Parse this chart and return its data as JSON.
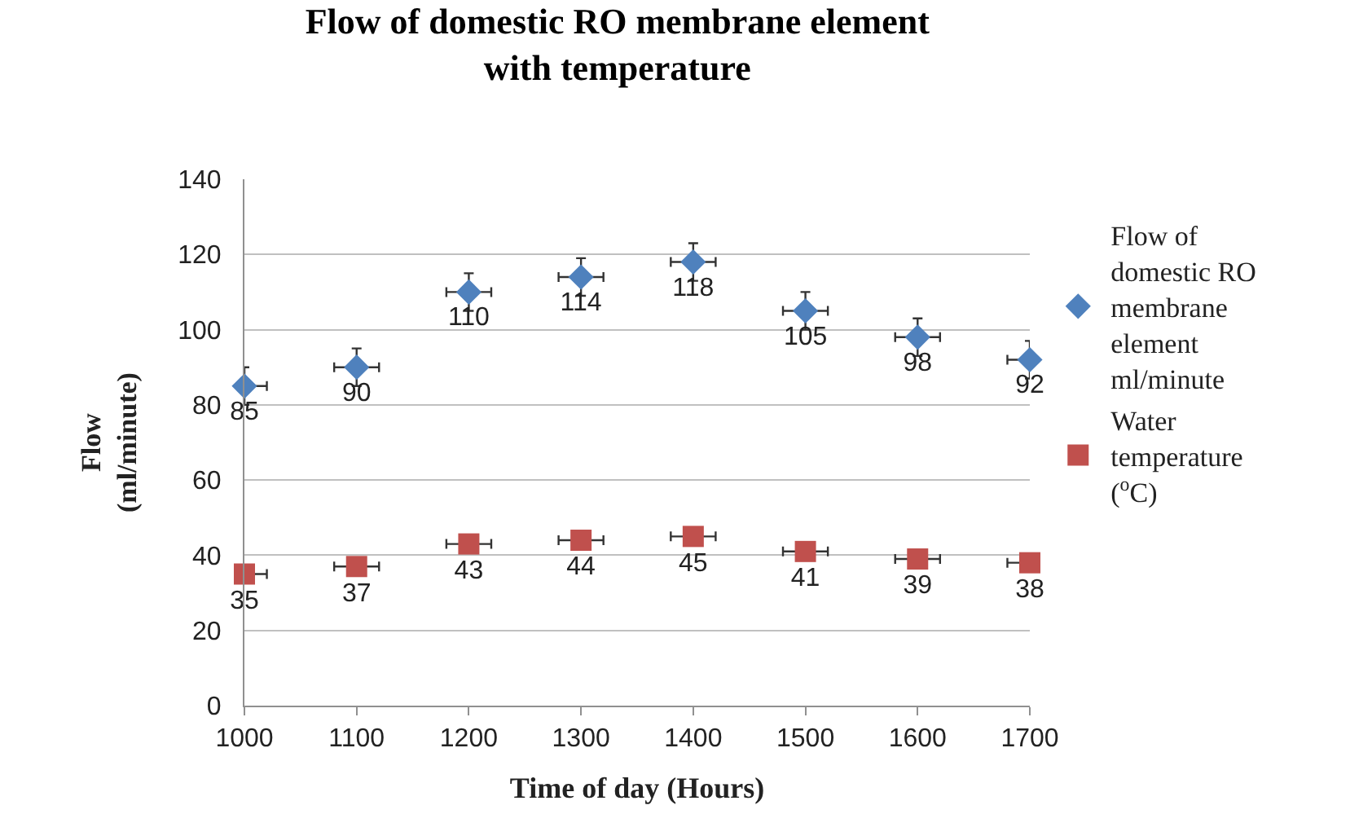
{
  "chart_data": {
    "type": "scatter",
    "title": "Flow of domestic RO membrane element with temperature",
    "xlabel": "Time of day (Hours)",
    "ylabel": "Flow (ml/minute)",
    "x": [
      1000,
      1100,
      1200,
      1300,
      1400,
      1500,
      1600,
      1700
    ],
    "series": [
      {
        "name": "Flow of domestic RO membrane element ml/minute",
        "color": "#4f81bd",
        "marker": "diamond",
        "values": [
          85,
          90,
          110,
          114,
          118,
          105,
          98,
          92
        ],
        "errors": [
          5,
          5,
          5,
          5,
          5,
          5,
          5,
          5
        ],
        "xerrors": [
          20,
          20,
          20,
          20,
          20,
          20,
          20,
          20
        ]
      },
      {
        "name": "Water temperature ($^{o}$C)",
        "color": "#c0504d",
        "marker": "square",
        "values": [
          35,
          37,
          43,
          44,
          45,
          41,
          39,
          38
        ],
        "xerrors": [
          20,
          20,
          20,
          20,
          20,
          20,
          20,
          20
        ]
      }
    ],
    "xlim": [
      1000,
      1700
    ],
    "xticks": [
      1000,
      1100,
      1200,
      1300,
      1400,
      1500,
      1600,
      1700
    ],
    "ylim": [
      0,
      140
    ],
    "yticks": [
      0,
      20,
      40,
      60,
      80,
      100,
      120,
      140
    ],
    "grid": "y",
    "legend": "right",
    "data_labels": true
  }
}
